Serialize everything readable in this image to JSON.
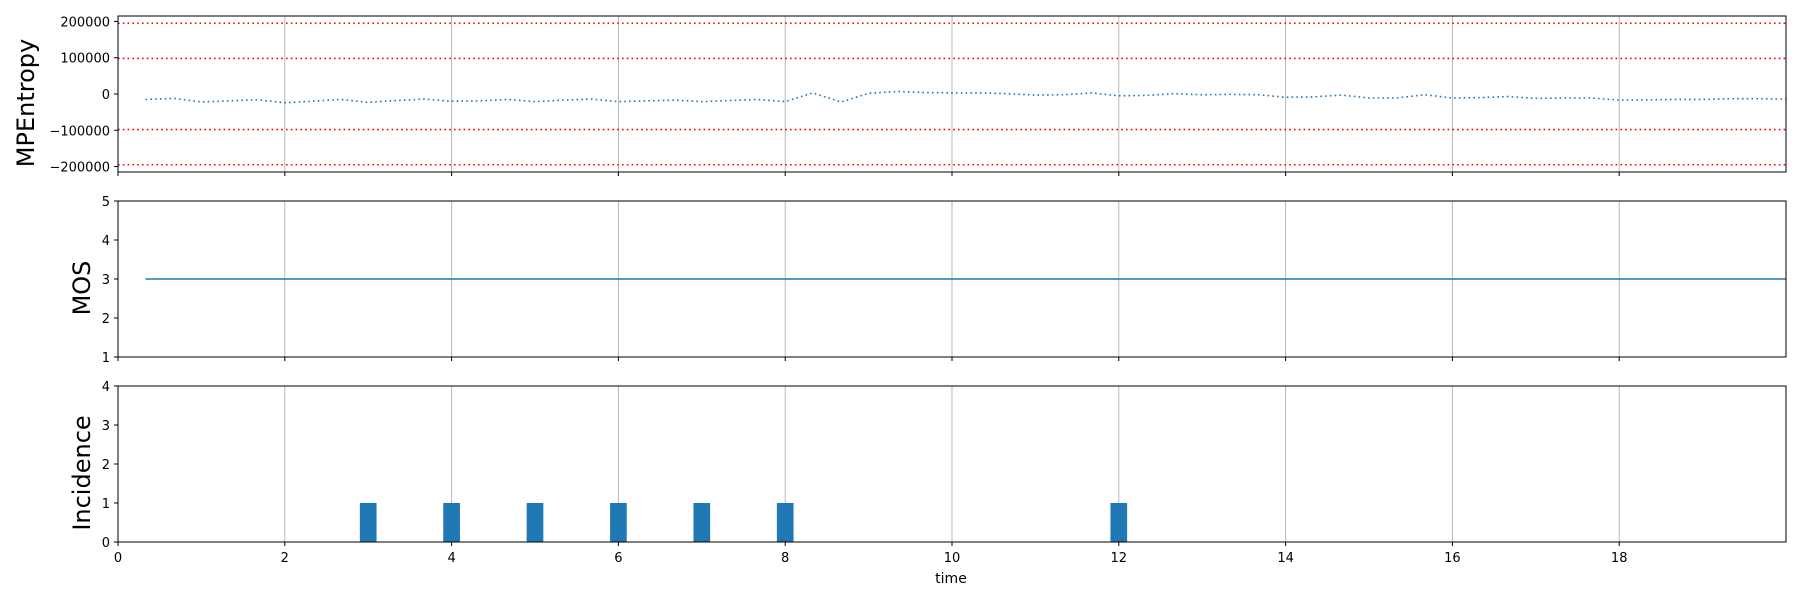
{
  "chart_data": [
    {
      "type": "line",
      "ylabel": "MPEntropy",
      "ylim": [
        -215000,
        215000
      ],
      "yticks": [
        -200000,
        -100000,
        0,
        100000,
        200000
      ],
      "ytick_labels": [
        "−200000",
        "−100000",
        "0",
        "100000",
        "200000"
      ],
      "threshold_lines": [
        195000,
        98000,
        -98000,
        -195000
      ],
      "threshold_color": "#ff0000",
      "line_color": "#1f77b4",
      "line_style": "dotted",
      "x": [
        0.33,
        0.67,
        1.0,
        1.33,
        1.67,
        2.0,
        2.33,
        2.67,
        3.0,
        3.33,
        3.67,
        4.0,
        4.33,
        4.67,
        5.0,
        5.33,
        5.67,
        6.0,
        6.33,
        6.67,
        7.0,
        7.33,
        7.67,
        8.0,
        8.33,
        8.67,
        9.0,
        9.33,
        9.67,
        10.0,
        10.33,
        10.67,
        11.0,
        11.33,
        11.67,
        12.0,
        12.33,
        12.67,
        13.0,
        13.33,
        13.67,
        14.0,
        14.33,
        14.67,
        15.0,
        15.33,
        15.67,
        16.0,
        16.33,
        16.67,
        17.0,
        17.33,
        17.67,
        18.0,
        18.33,
        18.67,
        19.0,
        19.33,
        19.67,
        20.0
      ],
      "values": [
        -15000,
        -12000,
        -22000,
        -19000,
        -16000,
        -24000,
        -20000,
        -15000,
        -23000,
        -18000,
        -14000,
        -20000,
        -19000,
        -15000,
        -21000,
        -17000,
        -14000,
        -21000,
        -19000,
        -17000,
        -21000,
        -18000,
        -15000,
        -21000,
        3000,
        -22000,
        2000,
        7000,
        4000,
        3000,
        3000,
        1000,
        -3000,
        -2000,
        3000,
        -5000,
        -4000,
        1000,
        -2000,
        -1000,
        -2000,
        -9000,
        -8000,
        -3000,
        -11000,
        -11000,
        -2000,
        -11000,
        -10000,
        -7000,
        -12000,
        -11000,
        -11000,
        -17000,
        -16000,
        -15000,
        -15000,
        -13000,
        -13000,
        -14000
      ]
    },
    {
      "type": "line",
      "ylabel": "MOS",
      "ylim": [
        1,
        5
      ],
      "yticks": [
        1,
        2,
        3,
        4,
        5
      ],
      "ytick_labels": [
        "1",
        "2",
        "3",
        "4",
        "5"
      ],
      "line_color": "#1f77b4",
      "x": [
        0.33,
        20.0
      ],
      "values": [
        3,
        3
      ]
    },
    {
      "type": "bar",
      "ylabel": "Incidence",
      "xlabel": "time",
      "ylim": [
        0,
        4
      ],
      "yticks": [
        0,
        1,
        2,
        3,
        4
      ],
      "ytick_labels": [
        "0",
        "1",
        "2",
        "3",
        "4"
      ],
      "bar_color": "#1f77b4",
      "bar_width": 0.2,
      "x": [
        3,
        4,
        5,
        6,
        7,
        8,
        12
      ],
      "values": [
        1,
        1,
        1,
        1,
        1,
        1,
        1
      ]
    }
  ],
  "shared_x": {
    "xlim": [
      0,
      20
    ],
    "ticks": [
      0,
      2,
      4,
      6,
      8,
      10,
      12,
      14,
      16,
      18
    ],
    "tick_labels": [
      "0",
      "2",
      "4",
      "6",
      "8",
      "10",
      "12",
      "14",
      "16",
      "18"
    ],
    "label": "time",
    "grid": true
  }
}
